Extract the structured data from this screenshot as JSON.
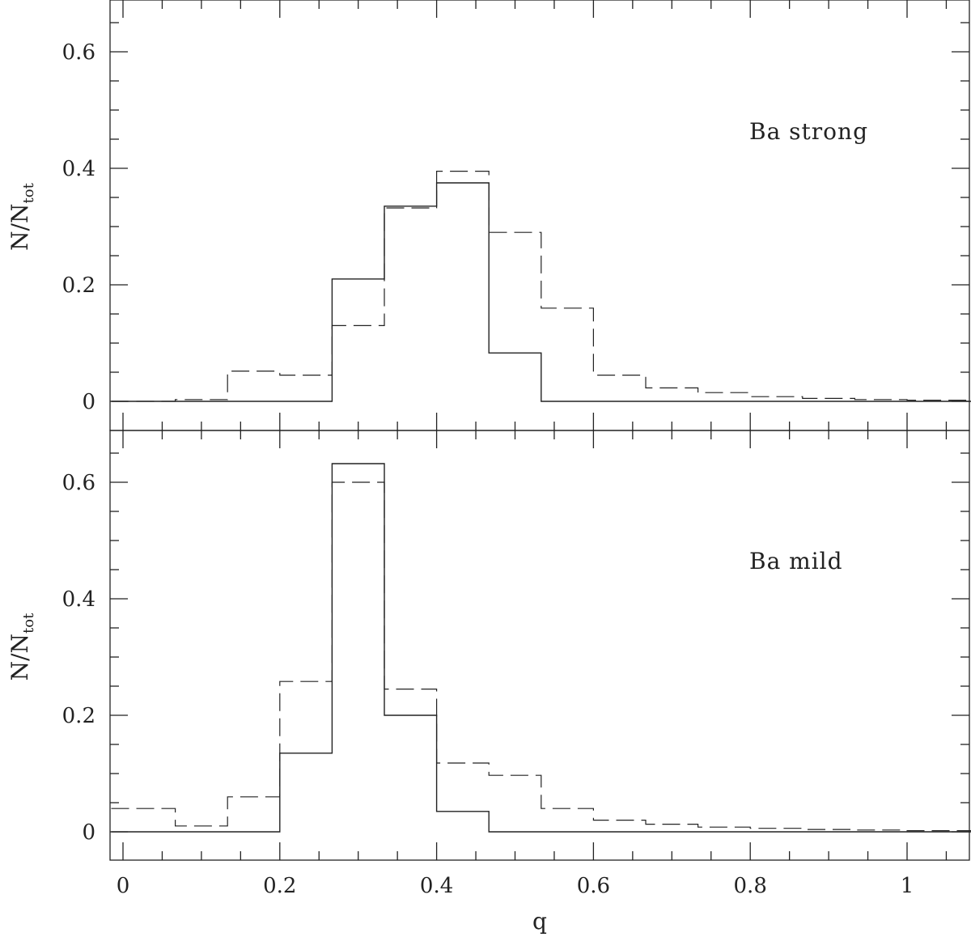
{
  "chart_data": [
    {
      "type": "step",
      "panel": "top",
      "annotation": "Ba strong",
      "ylabel_main": "N/N",
      "ylabel_sub": "tot",
      "xlabel": "",
      "xlim": [
        -0.015,
        1.085
      ],
      "ylim": [
        -0.05,
        0.69
      ],
      "yticks": [
        0,
        0.2,
        0.4,
        0.6
      ],
      "ytick_labels": [
        "0",
        "0.2",
        "0.4",
        "0.6"
      ],
      "bin_edges": [
        -0.015,
        0.0667,
        0.1333,
        0.2,
        0.2667,
        0.3333,
        0.4,
        0.4667,
        0.5333,
        0.6,
        0.6667,
        0.7333,
        0.8,
        0.8667,
        0.9333,
        1.0,
        1.085
      ],
      "series": [
        {
          "style": "solid",
          "values": [
            0,
            0,
            0,
            0,
            0.21,
            0.335,
            0.375,
            0.083,
            0,
            0,
            0,
            0,
            0,
            0,
            0,
            0
          ]
        },
        {
          "style": "dashed",
          "values": [
            0,
            0.003,
            0.052,
            0.045,
            0.13,
            0.332,
            0.395,
            0.29,
            0.16,
            0.045,
            0.023,
            0.015,
            0.008,
            0.005,
            0.003,
            0.002
          ]
        }
      ]
    },
    {
      "type": "step",
      "panel": "bottom",
      "annotation": "Ba mild",
      "ylabel_main": "N/N",
      "ylabel_sub": "tot",
      "xlabel": "q",
      "xlim": [
        -0.015,
        1.085
      ],
      "ylim": [
        -0.05,
        0.69
      ],
      "yticks": [
        0,
        0.2,
        0.4,
        0.6
      ],
      "ytick_labels": [
        "0",
        "0.2",
        "0.4",
        "0.6"
      ],
      "xticks": [
        0,
        0.2,
        0.4,
        0.6,
        0.8,
        1.0
      ],
      "xtick_labels": [
        "0",
        "0.2",
        "0.4",
        "0.6",
        "0.8",
        "1"
      ],
      "bin_edges": [
        -0.015,
        0.0667,
        0.1333,
        0.2,
        0.2667,
        0.3333,
        0.4,
        0.4667,
        0.5333,
        0.6,
        0.6667,
        0.7333,
        0.8,
        0.8667,
        0.9333,
        1.0,
        1.085
      ],
      "series": [
        {
          "style": "solid",
          "values": [
            0,
            0,
            0,
            0.135,
            0.632,
            0.2,
            0.035,
            0,
            0,
            0,
            0,
            0,
            0,
            0,
            0,
            0
          ]
        },
        {
          "style": "dashed",
          "values": [
            0.04,
            0.01,
            0.06,
            0.258,
            0.6,
            0.245,
            0.118,
            0.097,
            0.04,
            0.02,
            0.013,
            0.008,
            0.006,
            0.004,
            0.003,
            0.002
          ]
        }
      ]
    }
  ]
}
